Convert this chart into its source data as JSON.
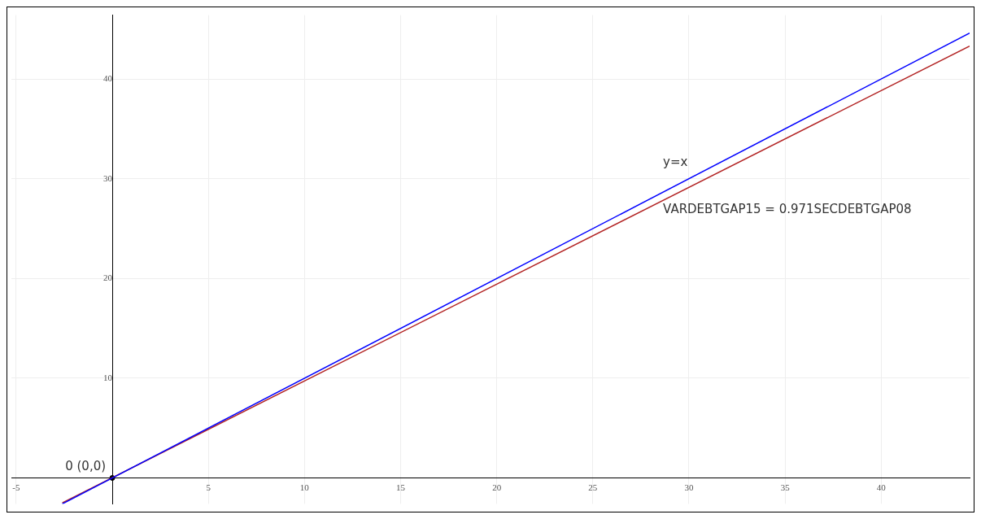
{
  "chart_data": {
    "type": "line",
    "xlim": [
      -5.25,
      44.6
    ],
    "ylim": [
      -2.6,
      46.4
    ],
    "xticks": [
      -5,
      5,
      10,
      15,
      20,
      25,
      30,
      35,
      40
    ],
    "yticks": [
      10,
      20,
      30,
      40
    ],
    "grid": true,
    "marker": "none",
    "series": [
      {
        "name": "y=x",
        "color": "#0000ff",
        "x": [
          -2.6,
          44.6
        ],
        "values": [
          -2.6,
          44.6
        ]
      },
      {
        "name": "VARDEBTGAP15 = 0.971SECDEBTGAP08",
        "color": "#b22222",
        "x": [
          -2.6,
          44.6
        ],
        "values": [
          -2.5,
          43.3
        ]
      },
      {
        "type": "scatter",
        "color": "#000000",
        "x": [
          0
        ],
        "values": [
          0
        ],
        "marker": "circle"
      }
    ],
    "annotations": [
      {
        "text": "0 (0,0)",
        "x": 0,
        "y": 0
      }
    ]
  }
}
